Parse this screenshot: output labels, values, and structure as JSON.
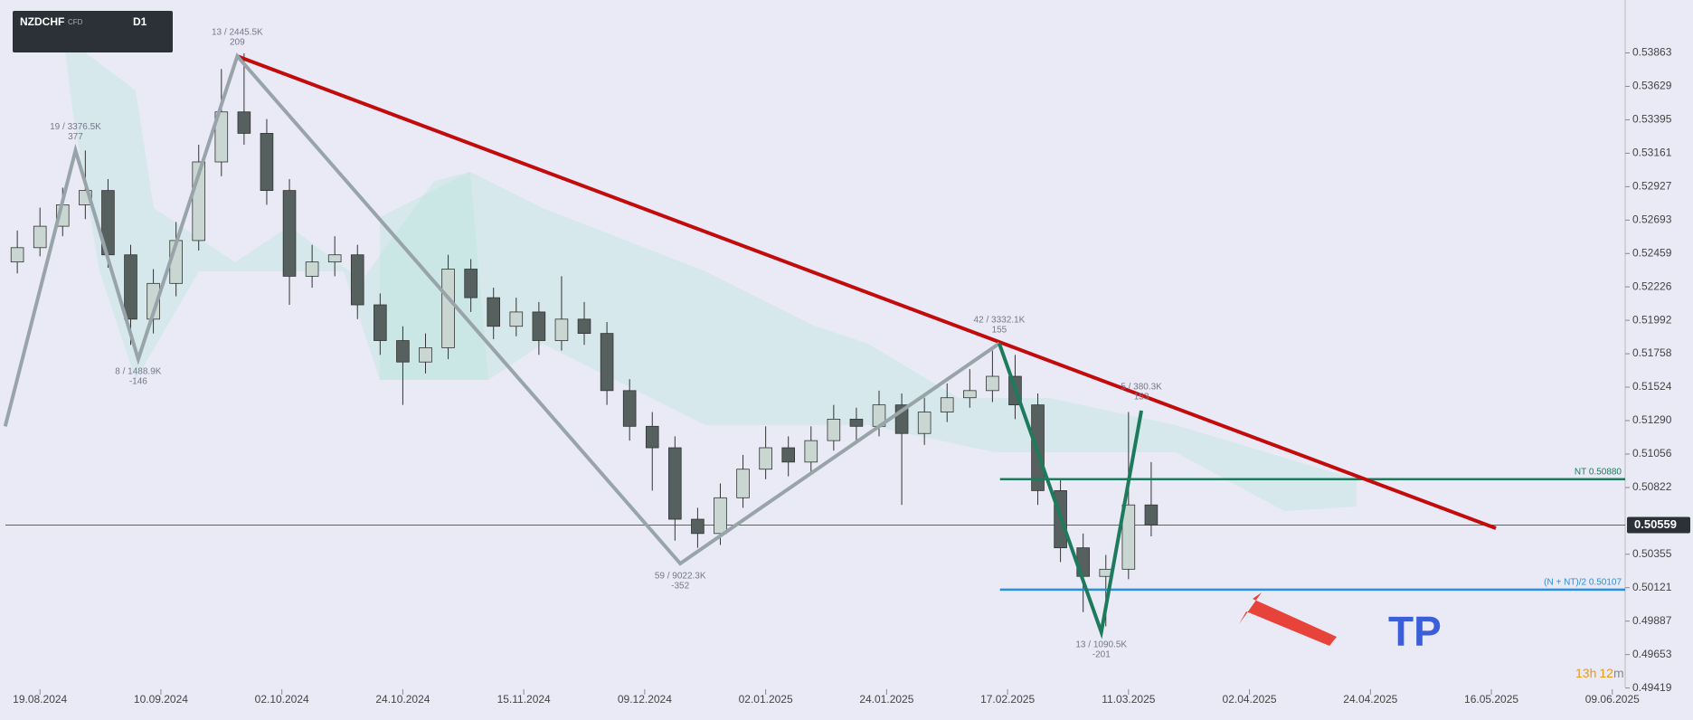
{
  "toolbar": {
    "symbol": "NZDCHF",
    "kind": "CFD",
    "timeframe": "D1"
  },
  "chart_data": {
    "type": "candlestick",
    "xlim": [
      -4.57,
      209.7
    ],
    "ylim": [
      0.49423,
      0.54233
    ],
    "xticks": [
      {
        "value": 0,
        "label": "19.08.2024"
      },
      {
        "value": 16,
        "label": "10.09.2024"
      },
      {
        "value": 32,
        "label": "02.10.2024"
      },
      {
        "value": 48,
        "label": "24.10.2024"
      },
      {
        "value": 64,
        "label": "15.11.2024"
      },
      {
        "value": 80,
        "label": "09.12.2024"
      },
      {
        "value": 96,
        "label": "02.01.2025"
      },
      {
        "value": 112,
        "label": "24.01.2025"
      },
      {
        "value": 128,
        "label": "17.02.2025"
      },
      {
        "value": 144,
        "label": "11.03.2025"
      },
      {
        "value": 160,
        "label": "02.04.2025"
      },
      {
        "value": 176,
        "label": "24.04.2025"
      },
      {
        "value": 192,
        "label": "16.05.2025"
      },
      {
        "value": 208,
        "label": "09.06.2025"
      }
    ],
    "yticks": [
      0.53863,
      0.53629,
      0.53395,
      0.53161,
      0.52927,
      0.52693,
      0.52459,
      0.52226,
      0.51992,
      0.51758,
      0.51524,
      {
        "value": 0.5129,
        "label": "0.51290"
      },
      0.51056,
      0.50822,
      0.50355,
      0.50121,
      0.49887,
      0.49653,
      0.49419
    ],
    "x": [
      -3,
      0,
      3,
      6,
      9,
      12,
      15,
      18,
      21,
      24,
      27,
      30,
      33,
      36,
      39,
      42,
      45,
      48,
      51,
      54,
      57,
      60,
      63,
      66,
      69,
      72,
      75,
      78,
      81,
      84,
      87,
      90,
      93,
      96,
      99,
      102,
      105,
      108,
      111,
      114,
      117,
      120,
      123,
      126,
      129,
      132,
      135,
      138,
      141,
      144,
      147
    ],
    "ohlc": [
      [
        0.524,
        0.5262,
        0.5232,
        0.525
      ],
      [
        0.525,
        0.5278,
        0.5244,
        0.5265
      ],
      [
        0.5265,
        0.5292,
        0.5258,
        0.528
      ],
      [
        0.528,
        0.5318,
        0.527,
        0.529
      ],
      [
        0.529,
        0.5298,
        0.5236,
        0.5245
      ],
      [
        0.5245,
        0.5252,
        0.5182,
        0.52
      ],
      [
        0.52,
        0.5235,
        0.519,
        0.5225
      ],
      [
        0.5225,
        0.5268,
        0.5216,
        0.5255
      ],
      [
        0.5255,
        0.5322,
        0.5248,
        0.531
      ],
      [
        0.531,
        0.5375,
        0.53,
        0.5345
      ],
      [
        0.5345,
        0.5386,
        0.5322,
        0.533
      ],
      [
        0.533,
        0.534,
        0.528,
        0.529
      ],
      [
        0.529,
        0.5298,
        0.521,
        0.523
      ],
      [
        0.523,
        0.5252,
        0.5222,
        0.524
      ],
      [
        0.524,
        0.5258,
        0.523,
        0.5245
      ],
      [
        0.5245,
        0.5252,
        0.52,
        0.521
      ],
      [
        0.521,
        0.5218,
        0.5175,
        0.5185
      ],
      [
        0.5185,
        0.5195,
        0.514,
        0.517
      ],
      [
        0.517,
        0.519,
        0.5162,
        0.518
      ],
      [
        0.518,
        0.5245,
        0.5172,
        0.5235
      ],
      [
        0.5235,
        0.5242,
        0.5205,
        0.5215
      ],
      [
        0.5215,
        0.5222,
        0.5186,
        0.5195
      ],
      [
        0.5195,
        0.5215,
        0.5188,
        0.5205
      ],
      [
        0.5205,
        0.5212,
        0.5175,
        0.5185
      ],
      [
        0.5185,
        0.523,
        0.5178,
        0.52
      ],
      [
        0.52,
        0.5212,
        0.5182,
        0.519
      ],
      [
        0.519,
        0.5198,
        0.514,
        0.515
      ],
      [
        0.515,
        0.5158,
        0.5115,
        0.5125
      ],
      [
        0.5125,
        0.5135,
        0.508,
        0.511
      ],
      [
        0.511,
        0.5118,
        0.5045,
        0.506
      ],
      [
        0.506,
        0.5068,
        0.504,
        0.505
      ],
      [
        0.505,
        0.5085,
        0.5042,
        0.5075
      ],
      [
        0.5075,
        0.5105,
        0.5068,
        0.5095
      ],
      [
        0.5095,
        0.5125,
        0.5088,
        0.511
      ],
      [
        0.511,
        0.5118,
        0.509,
        0.51
      ],
      [
        0.51,
        0.5125,
        0.5092,
        0.5115
      ],
      [
        0.5115,
        0.514,
        0.5108,
        0.513
      ],
      [
        0.513,
        0.5138,
        0.5115,
        0.5125
      ],
      [
        0.5125,
        0.515,
        0.5118,
        0.514
      ],
      [
        0.514,
        0.5148,
        0.507,
        0.512
      ],
      [
        0.512,
        0.5145,
        0.5112,
        0.5135
      ],
      [
        0.5135,
        0.5155,
        0.5128,
        0.5145
      ],
      [
        0.5145,
        0.5165,
        0.5138,
        0.515
      ],
      [
        0.515,
        0.5178,
        0.5142,
        0.516
      ],
      [
        0.516,
        0.5175,
        0.513,
        0.514
      ],
      [
        0.514,
        0.5148,
        0.507,
        0.508
      ],
      [
        0.508,
        0.5088,
        0.503,
        0.504
      ],
      [
        0.504,
        0.505,
        0.4995,
        0.502
      ],
      [
        0.502,
        0.5035,
        0.4985,
        0.5025
      ],
      [
        0.5025,
        0.5135,
        0.5018,
        0.507
      ],
      [
        0.507,
        0.51,
        0.5048,
        0.5056
      ]
    ],
    "up_color": "#c9d6d1",
    "down_color": "#55605f",
    "trendlines": [
      {
        "color": "#c40b0b",
        "points": [
          [
            26.1,
            0.5384
          ],
          [
            192.6,
            0.50537
          ]
        ],
        "labels": [
          null,
          null
        ]
      },
      {
        "color": "#98a4aa",
        "points": [
          [
            -4.6,
            0.5125
          ],
          [
            4.7,
            0.5318
          ],
          [
            13,
            0.5172
          ],
          [
            26.1,
            0.5384
          ],
          [
            84.7,
            0.5029
          ],
          [
            126.9,
            0.5183
          ]
        ],
        "labels": [
          null,
          [
            "19 / 3376.5K",
            "377"
          ],
          [
            "8 / 1488.9K",
            "-146"
          ],
          [
            "13 / 2445.5K",
            "209"
          ],
          [
            "59 / 9022.3K",
            "-352"
          ],
          [
            "42 / 3332.1K",
            "155"
          ]
        ]
      },
      {
        "color": "#1e7a5c",
        "points": [
          [
            126.9,
            0.5183
          ],
          [
            140.4,
            0.4981
          ],
          [
            145.7,
            0.5136
          ]
        ],
        "labels": [
          null,
          [
            "13 / 1090.5K",
            "-201"
          ],
          [
            "5 / 380.3K",
            "153"
          ]
        ]
      }
    ],
    "levels": [
      {
        "label": "NT 0.50880",
        "value": 0.5088,
        "start": 127,
        "color": "#1e7a5c"
      },
      {
        "label": "(N + NT)/2 0.50107",
        "value": 0.50107,
        "start": 127,
        "color": "#2a8fdc"
      }
    ],
    "last_price": 0.50559,
    "last_price_label": "0.50559",
    "annotation": "TP",
    "timer": [
      "13",
      "h",
      "12",
      "m"
    ]
  }
}
